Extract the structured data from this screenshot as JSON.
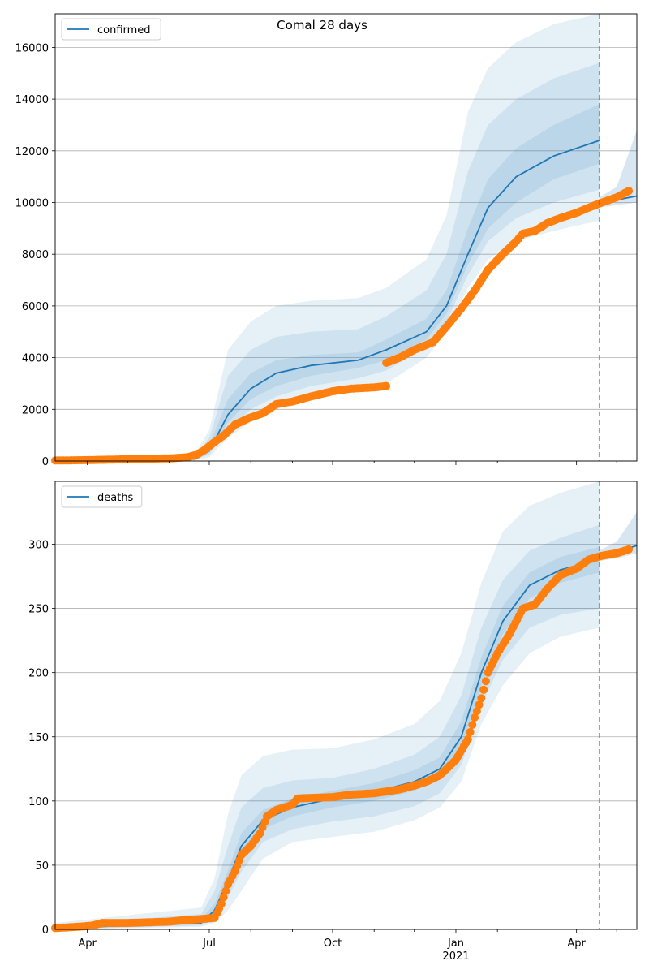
{
  "figure": {
    "title": "Comal 28 days"
  },
  "colors": {
    "model": "#1f77b4",
    "observed": "#ff7f0e",
    "band": "#1f77b4",
    "grid": "#b0b0b0"
  },
  "x_ticks": {
    "labels": [
      "Apr",
      "Jul",
      "Oct",
      "Jan",
      "Apr"
    ],
    "year_label": "2021"
  },
  "chart_data": [
    {
      "type": "line",
      "legend": "confirmed",
      "legend_position": "upper-left",
      "grid": "y",
      "x_domain": [
        "2020-03-08",
        "2021-05-16"
      ],
      "forecast_start": "2021-04-18",
      "ylim": [
        0,
        17300
      ],
      "y_ticks": [
        0,
        2000,
        4000,
        6000,
        8000,
        10000,
        12000,
        14000,
        16000
      ],
      "model_median": [
        [
          "2020-03-08",
          0
        ],
        [
          "2020-06-20",
          80
        ],
        [
          "2020-07-01",
          400
        ],
        [
          "2020-07-15",
          1800
        ],
        [
          "2020-08-01",
          2800
        ],
        [
          "2020-08-20",
          3400
        ],
        [
          "2020-09-15",
          3700
        ],
        [
          "2020-10-20",
          3900
        ],
        [
          "2020-11-10",
          4300
        ],
        [
          "2020-12-10",
          5000
        ],
        [
          "2020-12-25",
          6000
        ],
        [
          "2021-01-10",
          8000
        ],
        [
          "2021-01-25",
          9800
        ],
        [
          "2021-02-15",
          11000
        ],
        [
          "2021-03-15",
          11800
        ],
        [
          "2021-04-18",
          12400
        ]
      ],
      "model_band_outer": [
        [
          "2020-03-08",
          0,
          0
        ],
        [
          "2020-06-20",
          20,
          250
        ],
        [
          "2020-07-01",
          150,
          1200
        ],
        [
          "2020-07-15",
          900,
          4300
        ],
        [
          "2020-08-01",
          1500,
          5400
        ],
        [
          "2020-08-20",
          2000,
          6000
        ],
        [
          "2020-09-15",
          2400,
          6200
        ],
        [
          "2020-10-20",
          2700,
          6300
        ],
        [
          "2020-11-10",
          3000,
          6700
        ],
        [
          "2020-12-10",
          4000,
          7800
        ],
        [
          "2020-12-25",
          5000,
          9500
        ],
        [
          "2021-01-10",
          6700,
          13500
        ],
        [
          "2021-01-25",
          7800,
          15200
        ],
        [
          "2021-02-15",
          8500,
          16200
        ],
        [
          "2021-03-15",
          8900,
          16900
        ],
        [
          "2021-04-18",
          9300,
          17300
        ]
      ],
      "model_band_mid": [
        [
          "2020-03-08",
          0,
          0
        ],
        [
          "2020-06-20",
          40,
          150
        ],
        [
          "2020-07-01",
          250,
          900
        ],
        [
          "2020-07-15",
          1200,
          3300
        ],
        [
          "2020-08-01",
          2000,
          4300
        ],
        [
          "2020-08-20",
          2500,
          4800
        ],
        [
          "2020-09-15",
          2900,
          5000
        ],
        [
          "2020-10-20",
          3200,
          5100
        ],
        [
          "2020-11-10",
          3500,
          5600
        ],
        [
          "2020-12-10",
          4400,
          6600
        ],
        [
          "2020-12-25",
          5400,
          8000
        ],
        [
          "2021-01-10",
          7200,
          11200
        ],
        [
          "2021-01-25",
          8500,
          13000
        ],
        [
          "2021-02-15",
          9400,
          14000
        ],
        [
          "2021-03-15",
          10000,
          14800
        ],
        [
          "2021-04-18",
          10500,
          15400
        ]
      ],
      "model_band_inner": [
        [
          "2020-03-08",
          0,
          0
        ],
        [
          "2020-06-20",
          60,
          110
        ],
        [
          "2020-07-01",
          320,
          600
        ],
        [
          "2020-07-15",
          1500,
          2400
        ],
        [
          "2020-08-01",
          2400,
          3400
        ],
        [
          "2020-08-20",
          2900,
          3900
        ],
        [
          "2020-09-15",
          3300,
          4100
        ],
        [
          "2020-10-20",
          3600,
          4200
        ],
        [
          "2020-11-10",
          3900,
          4700
        ],
        [
          "2020-12-10",
          4700,
          5500
        ],
        [
          "2020-12-25",
          5700,
          6600
        ],
        [
          "2021-01-10",
          7600,
          9000
        ],
        [
          "2021-01-25",
          9000,
          10900
        ],
        [
          "2021-02-15",
          10000,
          12100
        ],
        [
          "2021-03-15",
          10900,
          13000
        ],
        [
          "2021-04-18",
          11500,
          13800
        ]
      ],
      "forecast_median": [
        [
          "2021-04-18",
          10000
        ],
        [
          "2021-05-01",
          10100
        ],
        [
          "2021-05-16",
          10250
        ]
      ],
      "forecast_band": [
        [
          "2021-04-18",
          9800,
          10200
        ],
        [
          "2021-05-01",
          9900,
          10600
        ],
        [
          "2021-05-16",
          10000,
          12800
        ]
      ],
      "observed_segments": [
        [
          [
            "2020-03-08",
            20
          ],
          [
            "2020-03-25",
            30
          ],
          [
            "2020-04-15",
            50
          ],
          [
            "2020-05-01",
            70
          ],
          [
            "2020-05-20",
            90
          ],
          [
            "2020-06-05",
            110
          ],
          [
            "2020-06-15",
            150
          ],
          [
            "2020-06-22",
            250
          ],
          [
            "2020-06-28",
            450
          ],
          [
            "2020-07-04",
            700
          ],
          [
            "2020-07-12",
            1000
          ],
          [
            "2020-07-20",
            1400
          ],
          [
            "2020-07-30",
            1650
          ],
          [
            "2020-08-10",
            1850
          ],
          [
            "2020-08-20",
            2200
          ],
          [
            "2020-09-01",
            2300
          ],
          [
            "2020-09-15",
            2500
          ],
          [
            "2020-10-01",
            2700
          ],
          [
            "2020-10-15",
            2800
          ],
          [
            "2020-11-01",
            2850
          ],
          [
            "2020-11-10",
            2900
          ]
        ],
        [
          [
            "2020-11-10",
            3800
          ],
          [
            "2020-11-20",
            4000
          ],
          [
            "2020-12-01",
            4300
          ],
          [
            "2020-12-15",
            4600
          ],
          [
            "2020-12-25",
            5200
          ],
          [
            "2021-01-05",
            5900
          ],
          [
            "2021-01-15",
            6600
          ],
          [
            "2021-01-25",
            7400
          ],
          [
            "2021-02-05",
            8000
          ],
          [
            "2021-02-15",
            8500
          ],
          [
            "2021-02-20",
            8800
          ],
          [
            "2021-03-01",
            8900
          ],
          [
            "2021-03-10",
            9200
          ],
          [
            "2021-03-20",
            9400
          ],
          [
            "2021-04-01",
            9600
          ],
          [
            "2021-04-10",
            9800
          ],
          [
            "2021-04-20",
            10000
          ],
          [
            "2021-05-01",
            10200
          ],
          [
            "2021-05-10",
            10450
          ]
        ]
      ]
    },
    {
      "type": "line",
      "legend": "deaths",
      "legend_position": "upper-left",
      "grid": "y",
      "x_domain": [
        "2020-03-08",
        "2021-05-16"
      ],
      "forecast_start": "2021-04-18",
      "ylim": [
        0,
        349
      ],
      "y_ticks": [
        0,
        50,
        100,
        150,
        200,
        250,
        300
      ],
      "model_median": [
        [
          "2020-03-08",
          1
        ],
        [
          "2020-06-25",
          5
        ],
        [
          "2020-07-05",
          15
        ],
        [
          "2020-07-15",
          38
        ],
        [
          "2020-07-25",
          65
        ],
        [
          "2020-08-10",
          85
        ],
        [
          "2020-09-01",
          95
        ],
        [
          "2020-10-01",
          102
        ],
        [
          "2020-11-01",
          107
        ],
        [
          "2020-12-01",
          115
        ],
        [
          "2020-12-20",
          125
        ],
        [
          "2021-01-05",
          150
        ],
        [
          "2021-01-20",
          200
        ],
        [
          "2021-02-05",
          240
        ],
        [
          "2021-02-25",
          268
        ],
        [
          "2021-03-20",
          280
        ],
        [
          "2021-04-18",
          288
        ]
      ],
      "model_band_outer": [
        [
          "2020-03-08",
          0,
          5
        ],
        [
          "2020-06-25",
          2,
          17
        ],
        [
          "2020-07-05",
          5,
          40
        ],
        [
          "2020-07-15",
          15,
          90
        ],
        [
          "2020-07-25",
          30,
          120
        ],
        [
          "2020-08-10",
          55,
          135
        ],
        [
          "2020-09-01",
          68,
          140
        ],
        [
          "2020-10-01",
          72,
          141
        ],
        [
          "2020-11-01",
          76,
          148
        ],
        [
          "2020-12-01",
          85,
          160
        ],
        [
          "2020-12-20",
          95,
          178
        ],
        [
          "2021-01-05",
          115,
          215
        ],
        [
          "2021-01-20",
          160,
          270
        ],
        [
          "2021-02-05",
          190,
          310
        ],
        [
          "2021-02-25",
          215,
          330
        ],
        [
          "2021-03-20",
          228,
          340
        ],
        [
          "2021-04-18",
          235,
          349
        ]
      ],
      "model_band_mid": [
        [
          "2020-03-08",
          0,
          3
        ],
        [
          "2020-06-25",
          3,
          12
        ],
        [
          "2020-07-05",
          8,
          30
        ],
        [
          "2020-07-15",
          25,
          65
        ],
        [
          "2020-07-25",
          45,
          95
        ],
        [
          "2020-08-10",
          68,
          110
        ],
        [
          "2020-09-01",
          78,
          116
        ],
        [
          "2020-10-01",
          84,
          118
        ],
        [
          "2020-11-01",
          88,
          125
        ],
        [
          "2020-12-01",
          96,
          136
        ],
        [
          "2020-12-20",
          106,
          150
        ],
        [
          "2021-01-05",
          128,
          182
        ],
        [
          "2021-01-20",
          175,
          235
        ],
        [
          "2021-02-05",
          210,
          272
        ],
        [
          "2021-02-25",
          235,
          295
        ],
        [
          "2021-03-20",
          245,
          305
        ],
        [
          "2021-04-18",
          250,
          315
        ]
      ],
      "model_band_inner": [
        [
          "2020-03-08",
          0,
          2
        ],
        [
          "2020-06-25",
          4,
          8
        ],
        [
          "2020-07-05",
          12,
          20
        ],
        [
          "2020-07-15",
          32,
          46
        ],
        [
          "2020-07-25",
          57,
          75
        ],
        [
          "2020-08-10",
          78,
          93
        ],
        [
          "2020-09-01",
          88,
          102
        ],
        [
          "2020-10-01",
          95,
          108
        ],
        [
          "2020-11-01",
          100,
          114
        ],
        [
          "2020-12-01",
          108,
          124
        ],
        [
          "2020-12-20",
          118,
          134
        ],
        [
          "2021-01-05",
          140,
          162
        ],
        [
          "2021-01-20",
          190,
          212
        ],
        [
          "2021-02-05",
          230,
          252
        ],
        [
          "2021-02-25",
          258,
          278
        ],
        [
          "2021-03-20",
          270,
          290
        ],
        [
          "2021-04-18",
          278,
          298
        ]
      ],
      "forecast_median": [
        [
          "2021-04-18",
          291
        ],
        [
          "2021-05-01",
          294
        ],
        [
          "2021-05-16",
          299
        ]
      ],
      "forecast_band": [
        [
          "2021-04-18",
          287,
          295
        ],
        [
          "2021-05-01",
          289,
          302
        ],
        [
          "2021-05-16",
          293,
          325
        ]
      ],
      "observed_segments": [
        [
          [
            "2020-03-08",
            1
          ],
          [
            "2020-03-25",
            2
          ],
          [
            "2020-04-05",
            3
          ],
          [
            "2020-04-12",
            5
          ],
          [
            "2020-05-01",
            5
          ],
          [
            "2020-06-01",
            6
          ],
          [
            "2020-06-10",
            7
          ],
          [
            "2020-06-25",
            8
          ],
          [
            "2020-07-05",
            9
          ],
          [
            "2020-07-10",
            20
          ],
          [
            "2020-07-15",
            35
          ],
          [
            "2020-07-20",
            45
          ],
          [
            "2020-07-25",
            58
          ],
          [
            "2020-08-01",
            65
          ],
          [
            "2020-08-08",
            75
          ],
          [
            "2020-08-13",
            88
          ],
          [
            "2020-08-20",
            93
          ],
          [
            "2020-09-01",
            97
          ],
          [
            "2020-09-05",
            102
          ],
          [
            "2020-10-01",
            103
          ],
          [
            "2020-10-15",
            105
          ],
          [
            "2020-11-01",
            106
          ],
          [
            "2020-11-20",
            109
          ],
          [
            "2020-12-01",
            112
          ],
          [
            "2020-12-10",
            115
          ],
          [
            "2020-12-20",
            120
          ],
          [
            "2021-01-01",
            132
          ],
          [
            "2021-01-10",
            148
          ],
          [
            "2021-01-15",
            165
          ],
          [
            "2021-01-20",
            180
          ],
          [
            "2021-01-25",
            200
          ],
          [
            "2021-02-01",
            215
          ],
          [
            "2021-02-10",
            230
          ],
          [
            "2021-02-20",
            250
          ],
          [
            "2021-03-01",
            253
          ],
          [
            "2021-03-10",
            265
          ],
          [
            "2021-03-20",
            276
          ],
          [
            "2021-04-01",
            281
          ],
          [
            "2021-04-10",
            288
          ],
          [
            "2021-04-20",
            291
          ],
          [
            "2021-05-01",
            293
          ],
          [
            "2021-05-10",
            296
          ]
        ]
      ]
    }
  ]
}
